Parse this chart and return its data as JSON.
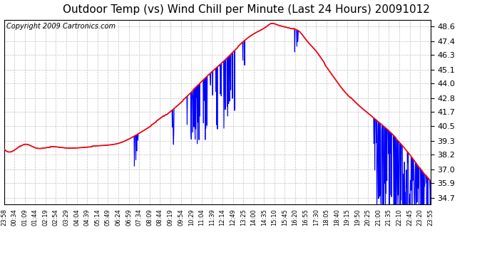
{
  "title": "Outdoor Temp (vs) Wind Chill per Minute (Last 24 Hours) 20091012",
  "copyright": "Copyright 2009 Cartronics.com",
  "yticks": [
    34.7,
    35.9,
    37.0,
    38.2,
    39.3,
    40.5,
    41.7,
    42.8,
    44.0,
    45.1,
    46.3,
    47.4,
    48.6
  ],
  "ymin": 34.2,
  "ymax": 49.1,
  "xtick_labels": [
    "23:58",
    "00:34",
    "01:09",
    "01:44",
    "02:19",
    "02:54",
    "03:29",
    "04:04",
    "04:39",
    "05:14",
    "05:49",
    "06:24",
    "06:59",
    "07:34",
    "08:09",
    "08:44",
    "09:19",
    "09:54",
    "10:29",
    "11:04",
    "11:39",
    "12:14",
    "12:49",
    "13:25",
    "14:00",
    "14:35",
    "15:10",
    "15:45",
    "16:20",
    "16:55",
    "17:30",
    "18:05",
    "18:40",
    "19:15",
    "19:50",
    "20:25",
    "21:00",
    "21:35",
    "22:10",
    "22:45",
    "23:20",
    "23:55"
  ],
  "background_color": "#ffffff",
  "plot_bg_color": "#ffffff",
  "grid_color": "#c0c0c0",
  "red_line_color": "#ff0000",
  "blue_line_color": "#0000ff",
  "title_fontsize": 11,
  "copyright_fontsize": 7,
  "red_lw": 1.2,
  "blue_lw": 0.8
}
